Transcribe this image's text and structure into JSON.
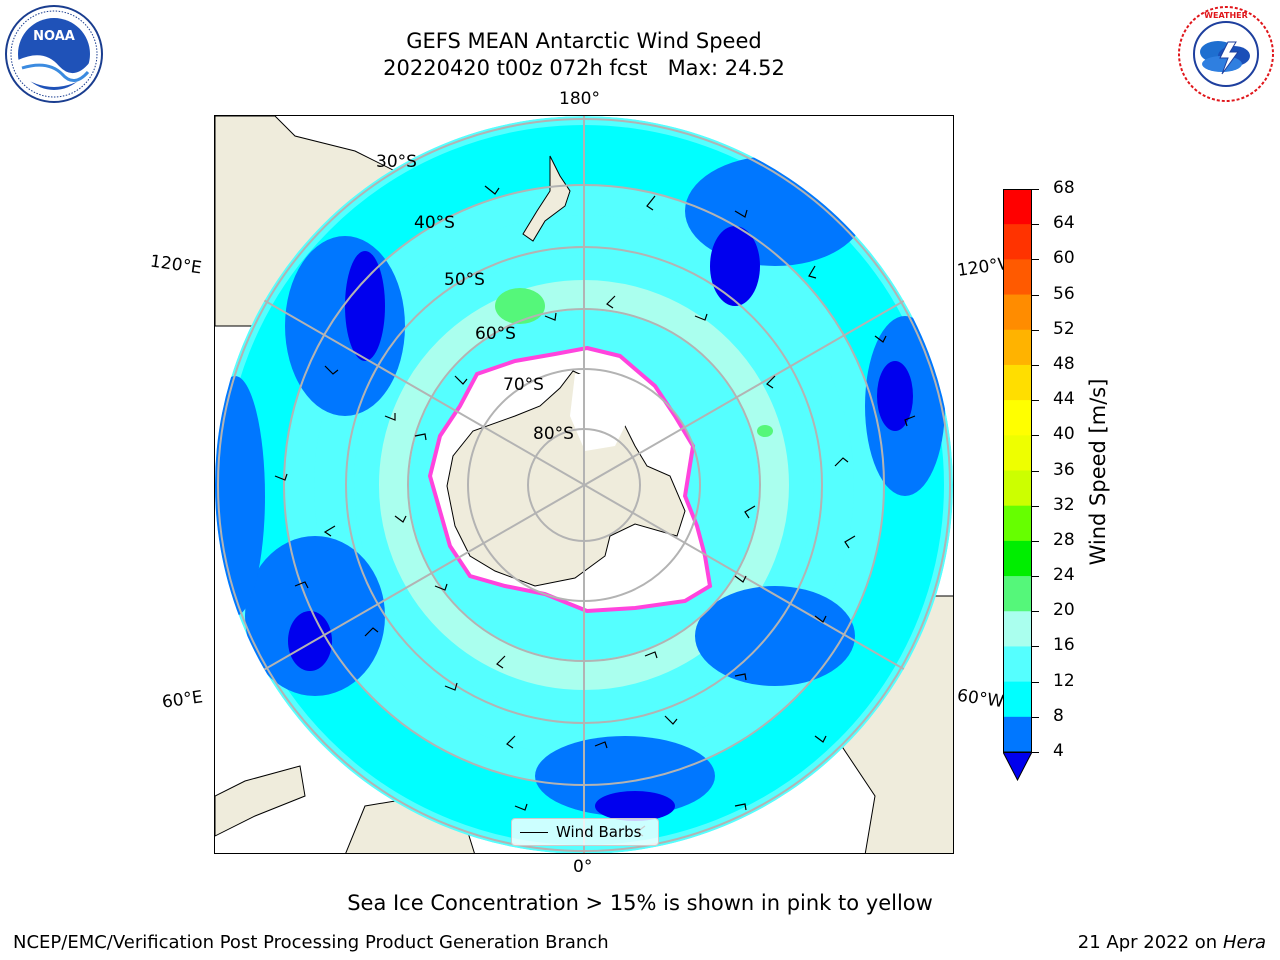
{
  "header": {
    "title_line1": "GEFS MEAN Antarctic Wind Speed",
    "title_line2": "20220420 t00z 072h fcst   Max: 24.52"
  },
  "logos": {
    "left": {
      "name": "NOAA",
      "ring_text": "NATIONAL OCEANIC AND ATMOSPHERIC ADMINISTRATION · U.S. DEPARTMENT OF COMMERCE ·"
    },
    "right": {
      "name": "NATIONAL WEATHER SERVICE",
      "ring_text": "NATIONAL WEATHER SERVICE"
    }
  },
  "map": {
    "lon_labels": {
      "top": "180°",
      "bottom": "0°",
      "left_upper": "120°E",
      "left_lower": "60°E",
      "right_upper": "120°W",
      "right_lower": "60°W"
    },
    "lat_labels": [
      "30°S",
      "40°S",
      "50°S",
      "60°S",
      "70°S",
      "80°S"
    ],
    "legend": {
      "label": "Wind Barbs"
    },
    "colors": {
      "land": "#efecdc",
      "ice": "#ffffff",
      "ice_edge": "#ff44dd",
      "grid": "#b3b3b3"
    }
  },
  "colorbar": {
    "label": "Wind Speed [m/s]",
    "ticks": [
      "68",
      "64",
      "60",
      "56",
      "52",
      "48",
      "44",
      "40",
      "36",
      "32",
      "28",
      "24",
      "20",
      "16",
      "12",
      "8",
      "4"
    ],
    "colors": [
      "#ff0000",
      "#ff3300",
      "#ff5a00",
      "#ff8c00",
      "#ffb300",
      "#ffde00",
      "#ffff00",
      "#eeff00",
      "#ccff00",
      "#66ff00",
      "#00ee00",
      "#55f77a",
      "#aaffee",
      "#55ffff",
      "#00ffff",
      "#0077ff"
    ],
    "extend_color": "#0000ee"
  },
  "footer": {
    "note": "Sea Ice Concentration > 15% is shown in pink to yellow",
    "left": "NCEP/EMC/Verification Post Processing Product Generation Branch",
    "right_prefix": "21 Apr 2022 on ",
    "right_host": "Hera"
  }
}
